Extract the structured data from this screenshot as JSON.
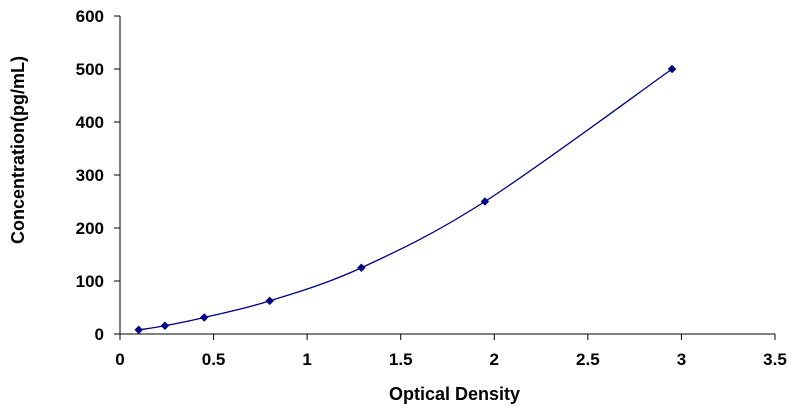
{
  "chart_data": {
    "type": "scatter",
    "title": "",
    "xlabel": "Optical Density",
    "ylabel": "Concentration(pg/mL)",
    "xlim": [
      0,
      3.5
    ],
    "ylim": [
      0,
      600
    ],
    "x_ticks": [
      0,
      0.5,
      1,
      1.5,
      2,
      2.5,
      3,
      3.5
    ],
    "y_ticks": [
      0,
      100,
      200,
      300,
      400,
      500,
      600
    ],
    "x_tick_labels": [
      "0",
      "0.5",
      "1",
      "1.5",
      "2",
      "2.5",
      "3",
      "3.5"
    ],
    "y_tick_labels": [
      "0",
      "100",
      "200",
      "300",
      "400",
      "500",
      "600"
    ],
    "grid": false,
    "legend": "none",
    "series": [
      {
        "x": [
          0.1,
          0.24,
          0.45,
          0.8,
          1.29,
          1.95,
          2.95
        ],
        "y": [
          7.8,
          15.6,
          31.2,
          62.5,
          125,
          250,
          500
        ],
        "marker": "diamond",
        "line": "smooth",
        "color": "#000080"
      }
    ]
  }
}
